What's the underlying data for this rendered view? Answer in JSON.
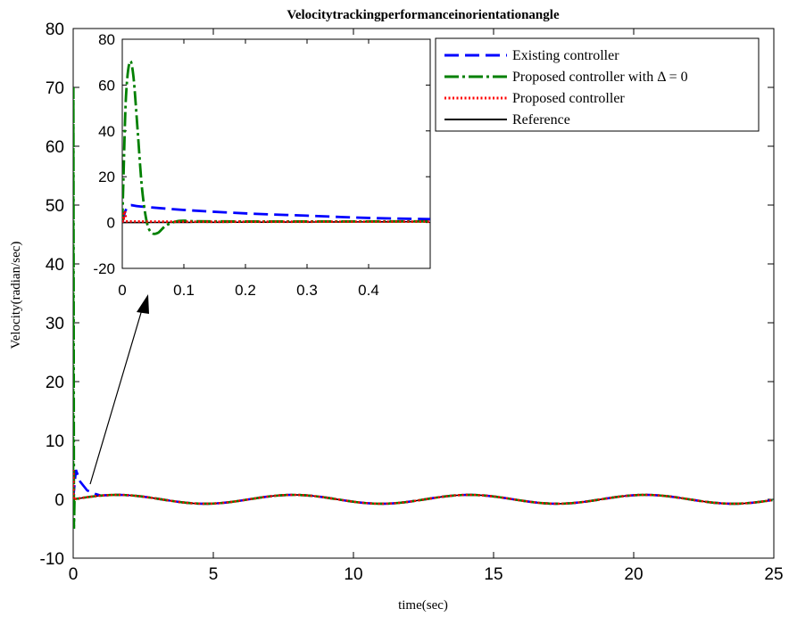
{
  "chart_data": {
    "type": "line",
    "title": "Velocitytrackingperformanceinorientationangle",
    "xlabel": "time(sec)",
    "ylabel": "Velocity(radian/sec)",
    "xlim": [
      0,
      25
    ],
    "ylim": [
      -10,
      80
    ],
    "x_ticks": [
      "0",
      "5",
      "10",
      "15",
      "20",
      "25"
    ],
    "y_ticks": [
      "-10",
      "0",
      "10",
      "20",
      "30",
      "40",
      "50",
      "60",
      "70",
      "80"
    ],
    "grid": false,
    "legend_position": "top-right",
    "reference": {
      "amplitude": 0.75,
      "period": 6.28
    },
    "series": [
      {
        "name": "Existing controller",
        "color": "#0000ff",
        "style": "dashed"
      },
      {
        "name": "Proposed controller with Δ = 0",
        "color": "#008000",
        "style": "dashdot"
      },
      {
        "name": "Proposed controller",
        "color": "#ff0000",
        "style": "dotted"
      },
      {
        "name": "Reference",
        "color": "#000000",
        "style": "solid"
      }
    ],
    "inset": {
      "xlim": [
        0,
        0.5
      ],
      "ylim": [
        -20,
        80
      ],
      "x_ticks": [
        "0",
        "0.1",
        "0.2",
        "0.3",
        "0.4"
      ],
      "y_ticks": [
        "-20",
        "0",
        "20",
        "40",
        "60",
        "80"
      ],
      "existing_controller": [
        [
          0,
          0
        ],
        [
          0.005,
          5
        ],
        [
          0.012,
          7.5
        ],
        [
          0.03,
          7
        ],
        [
          0.1,
          5.5
        ],
        [
          0.2,
          4
        ],
        [
          0.3,
          3
        ],
        [
          0.4,
          2
        ],
        [
          0.5,
          1.5
        ]
      ],
      "proposed_delta0": [
        [
          0,
          0
        ],
        [
          0.002,
          20
        ],
        [
          0.006,
          55
        ],
        [
          0.012,
          70
        ],
        [
          0.018,
          64
        ],
        [
          0.025,
          40
        ],
        [
          0.032,
          15
        ],
        [
          0.04,
          0
        ],
        [
          0.048,
          -4.5
        ],
        [
          0.058,
          -4.5
        ],
        [
          0.07,
          -1.5
        ],
        [
          0.085,
          0.3
        ],
        [
          0.1,
          0.8
        ],
        [
          0.15,
          0.5
        ],
        [
          0.5,
          0.5
        ]
      ],
      "proposed_controller": [
        [
          0,
          0
        ],
        [
          0.002,
          3
        ],
        [
          0.004,
          5
        ],
        [
          0.006,
          2
        ],
        [
          0.01,
          0.5
        ],
        [
          0.5,
          0.4
        ]
      ]
    }
  }
}
